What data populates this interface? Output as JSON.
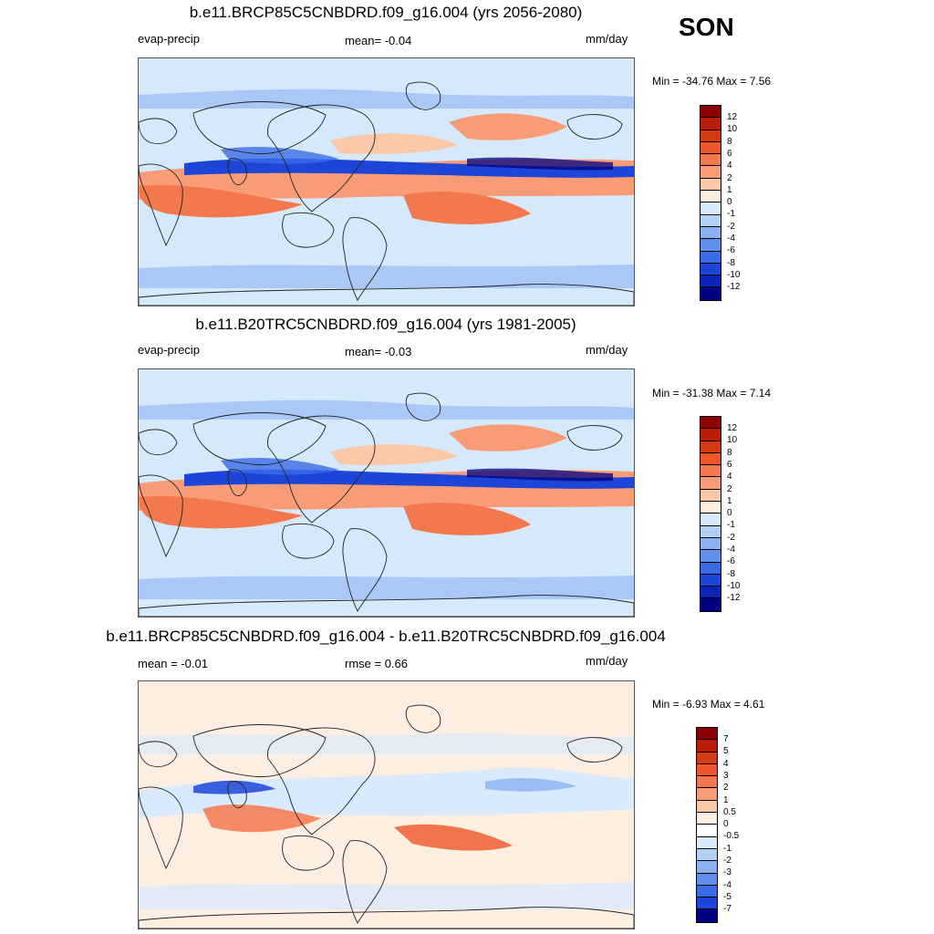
{
  "season": "SON",
  "units": "mm/day",
  "variable": "evap-precip",
  "panels": [
    {
      "id": "future",
      "title": "b.e11.BRCP85C5CNBDRD.f09_g16.004 (yrs 2056-2080)",
      "left_label": "evap-precip",
      "center_label": "mean=  -0.04",
      "right_label": "mm/day",
      "minmax": "Min = -34.76 Max =   7.56",
      "colorbar_labels": [
        "12",
        "10",
        "8",
        "6",
        "4",
        "2",
        "1",
        "0",
        "-1",
        "-2",
        "-4",
        "-6",
        "-8",
        "-10",
        "-12"
      ],
      "colorbar_colors": [
        "#8b0000",
        "#b81d06",
        "#d63a0f",
        "#ec5628",
        "#f4784d",
        "#f89c78",
        "#fbc8a8",
        "#fdeede",
        "#d8eafc",
        "#b3d0f7",
        "#8ab2f2",
        "#6090ec",
        "#3a6ce6",
        "#1d45d8",
        "#0a25b8",
        "#000080"
      ],
      "min": -34.76,
      "max": 7.56
    },
    {
      "id": "historical",
      "title": "b.e11.B20TRC5CNBDRD.f09_g16.004 (yrs 1981-2005)",
      "left_label": "evap-precip",
      "center_label": "mean=  -0.03",
      "right_label": "mm/day",
      "minmax": "Min = -31.38 Max =   7.14",
      "colorbar_labels": [
        "12",
        "10",
        "8",
        "6",
        "4",
        "2",
        "1",
        "0",
        "-1",
        "-2",
        "-4",
        "-6",
        "-8",
        "-10",
        "-12"
      ],
      "colorbar_colors": [
        "#8b0000",
        "#b81d06",
        "#d63a0f",
        "#ec5628",
        "#f4784d",
        "#f89c78",
        "#fbc8a8",
        "#fdeede",
        "#d8eafc",
        "#b3d0f7",
        "#8ab2f2",
        "#6090ec",
        "#3a6ce6",
        "#1d45d8",
        "#0a25b8",
        "#000080"
      ],
      "min": -31.38,
      "max": 7.14
    },
    {
      "id": "difference",
      "title": "b.e11.BRCP85C5CNBDRD.f09_g16.004 - b.e11.B20TRC5CNBDRD.f09_g16.004",
      "left_label": "mean =  -0.01",
      "center_label": "rmse =   0.66",
      "right_label": "mm/day",
      "minmax": "Min =  -6.93 Max =   4.61",
      "colorbar_labels": [
        "7",
        "5",
        "4",
        "3",
        "2",
        "1",
        "0.5",
        "0",
        "-0.5",
        "-1",
        "-2",
        "-3",
        "-4",
        "-5",
        "-7"
      ],
      "colorbar_colors": [
        "#8b0000",
        "#b81d06",
        "#d63a0f",
        "#ec5628",
        "#f4784d",
        "#f89c78",
        "#fbc8a8",
        "#fdeee2",
        "#ffffff",
        "#d8eafc",
        "#b3d0f7",
        "#8ab2f2",
        "#6090ec",
        "#3a6ce6",
        "#1d45d8",
        "#000080"
      ],
      "min": -6.93,
      "max": 4.61
    }
  ]
}
